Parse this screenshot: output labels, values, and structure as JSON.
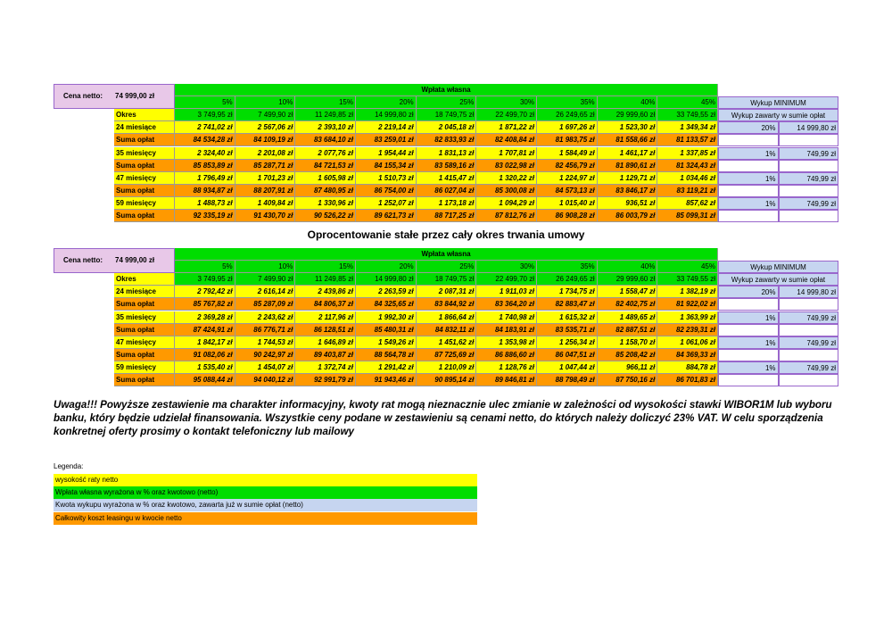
{
  "tables": [
    {
      "price_label": "Cena netto:",
      "price": "74 999,00 zł",
      "header": "Wpłata własna",
      "percents": [
        "5%",
        "10%",
        "15%",
        "20%",
        "25%",
        "30%",
        "35%",
        "40%",
        "45%"
      ],
      "buyout_header": "Wykup MINIMUM",
      "period_label": "Okres",
      "down_payments": [
        "3 749,95 zł",
        "7 499,90 zł",
        "11 249,85 zł",
        "14 999,80 zł",
        "18 749,75 zł",
        "22 499,70 zł",
        "26 249,65 zł",
        "29 999,60 zł",
        "33 749,55 zł"
      ],
      "buyout_note": "Wykup zawarty w sumie opłat",
      "rows": [
        {
          "label": "24 miesiące",
          "values": [
            "2 741,02 zł",
            "2 567,06 zł",
            "2 393,10 zł",
            "2 219,14 zł",
            "2 045,18 zł",
            "1 871,22 zł",
            "1 697,26 zł",
            "1 523,30 zł",
            "1 349,34 zł"
          ],
          "buyout_pct": "20%",
          "buyout_amount": "14 999,80 zł"
        },
        {
          "label": "Suma opłat",
          "values": [
            "84 534,28 zł",
            "84 109,19 zł",
            "83 684,10 zł",
            "83 259,01 zł",
            "82 833,93 zł",
            "82 408,84 zł",
            "81 983,75 zł",
            "81 558,66 zł",
            "81 133,57 zł"
          ]
        },
        {
          "label": "35 miesięcy",
          "values": [
            "2 324,40 zł",
            "2 201,08 zł",
            "2 077,76 zł",
            "1 954,44 zł",
            "1 831,13 zł",
            "1 707,81 zł",
            "1 584,49 zł",
            "1 461,17 zł",
            "1 337,85 zł"
          ],
          "buyout_pct": "1%",
          "buyout_amount": "749,99 zł"
        },
        {
          "label": "Suma opłat",
          "values": [
            "85 853,89 zł",
            "85 287,71 zł",
            "84 721,53 zł",
            "84 155,34 zł",
            "83 589,16 zł",
            "83 022,98 zł",
            "82 456,79 zł",
            "81 890,61 zł",
            "81 324,43 zł"
          ]
        },
        {
          "label": "47 miesięcy",
          "values": [
            "1 796,49 zł",
            "1 701,23 zł",
            "1 605,98 zł",
            "1 510,73 zł",
            "1 415,47 zł",
            "1 320,22 zł",
            "1 224,97 zł",
            "1 129,71 zł",
            "1 034,46 zł"
          ],
          "buyout_pct": "1%",
          "buyout_amount": "749,99 zł"
        },
        {
          "label": "Suma opłat",
          "values": [
            "88 934,87 zł",
            "88 207,91 zł",
            "87 480,95 zł",
            "86 754,00 zł",
            "86 027,04 zł",
            "85 300,08 zł",
            "84 573,13 zł",
            "83 846,17 zł",
            "83 119,21 zł"
          ]
        },
        {
          "label": "59 miesięcy",
          "values": [
            "1 488,73 zł",
            "1 409,84 zł",
            "1 330,96 zł",
            "1 252,07 zł",
            "1 173,18 zł",
            "1 094,29 zł",
            "1 015,40 zł",
            "936,51 zł",
            "857,62 zł"
          ],
          "buyout_pct": "1%",
          "buyout_amount": "749,99 zł"
        },
        {
          "label": "Suma opłat",
          "values": [
            "92 335,19 zł",
            "91 430,70 zł",
            "90 526,22 zł",
            "89 621,73 zł",
            "88 717,25 zł",
            "87 812,76 zł",
            "86 908,28 zł",
            "86 003,79 zł",
            "85 099,31 zł"
          ]
        }
      ]
    },
    {
      "price_label": "Cena netto:",
      "price": "74 999,00 zł",
      "header": "Wpłata własna",
      "percents": [
        "5%",
        "10%",
        "15%",
        "20%",
        "25%",
        "30%",
        "35%",
        "40%",
        "45%"
      ],
      "buyout_header": "Wykup MINIMUM",
      "period_label": "Okres",
      "down_payments": [
        "3 749,95 zł",
        "7 499,90 zł",
        "11 249,85 zł",
        "14 999,80 zł",
        "18 749,75 zł",
        "22 499,70 zł",
        "26 249,65 zł",
        "29 999,60 zł",
        "33 749,55 zł"
      ],
      "buyout_note": "Wykup zawarty w sumie opłat",
      "rows": [
        {
          "label": "24 miesiące",
          "values": [
            "2 792,42 zł",
            "2 616,14 zł",
            "2 439,86 zł",
            "2 263,59 zł",
            "2 087,31 zł",
            "1 911,03 zł",
            "1 734,75 zł",
            "1 558,47 zł",
            "1 382,19 zł"
          ],
          "buyout_pct": "20%",
          "buyout_amount": "14 999,80 zł"
        },
        {
          "label": "Suma opłat",
          "values": [
            "85 767,82 zł",
            "85 287,09 zł",
            "84 806,37 zł",
            "84 325,65 zł",
            "83 844,92 zł",
            "83 364,20 zł",
            "82 883,47 zł",
            "82 402,75 zł",
            "81 922,02 zł"
          ]
        },
        {
          "label": "35 miesięcy",
          "values": [
            "2 369,28 zł",
            "2 243,62 zł",
            "2 117,96 zł",
            "1 992,30 zł",
            "1 866,64 zł",
            "1 740,98 zł",
            "1 615,32 zł",
            "1 489,65 zł",
            "1 363,99 zł"
          ],
          "buyout_pct": "1%",
          "buyout_amount": "749,99 zł"
        },
        {
          "label": "Suma opłat",
          "values": [
            "87 424,91 zł",
            "86 776,71 zł",
            "86 128,51 zł",
            "85 480,31 zł",
            "84 832,11 zł",
            "84 183,91 zł",
            "83 535,71 zł",
            "82 887,51 zł",
            "82 239,31 zł"
          ]
        },
        {
          "label": "47 miesięcy",
          "values": [
            "1 842,17 zł",
            "1 744,53 zł",
            "1 646,89 zł",
            "1 549,26 zł",
            "1 451,62 zł",
            "1 353,98 zł",
            "1 256,34 zł",
            "1 158,70 zł",
            "1 061,06 zł"
          ],
          "buyout_pct": "1%",
          "buyout_amount": "749,99 zł"
        },
        {
          "label": "Suma opłat",
          "values": [
            "91 082,06 zł",
            "90 242,97 zł",
            "89 403,87 zł",
            "88 564,78 zł",
            "87 725,69 zł",
            "86 886,60 zł",
            "86 047,51 zł",
            "85 208,42 zł",
            "84 369,33 zł"
          ]
        },
        {
          "label": "59 miesięcy",
          "values": [
            "1 535,40 zł",
            "1 454,07 zł",
            "1 372,74 zł",
            "1 291,42 zł",
            "1 210,09 zł",
            "1 128,76 zł",
            "1 047,44 zł",
            "966,11 zł",
            "884,78 zł"
          ],
          "buyout_pct": "1%",
          "buyout_amount": "749,99 zł"
        },
        {
          "label": "Suma opłat",
          "values": [
            "95 088,44 zł",
            "94 040,12 zł",
            "92 991,79 zł",
            "91 943,46 zł",
            "90 895,14 zł",
            "89 846,81 zł",
            "88 798,49 zł",
            "87 750,16 zł",
            "86 701,83 zł"
          ]
        }
      ]
    }
  ],
  "heading": "Oprocentowanie stałe przez cały okres trwania umowy",
  "notice": "Uwaga!!! Powyższe zestawienie ma charakter informacyjny, kwoty rat mogą nieznacznie ulec zmianie w zależności od wysokości stawki WIBOR1M lub wyboru banku, który będzie udzielał finansowania. Wszystkie ceny podane w zestawieniu są cenami netto, do których należy doliczyć 23% VAT. W celu sporządzenia konkretnej oferty prosimy o kontakt telefoniczny lub mailowy",
  "legend": {
    "title": "Legenda:",
    "items": [
      "wysokość raty netto",
      "Wpłata własna wyrażona w % oraz kwotowo (netto)",
      "Kwota wykupu wyrażona w % oraz kwotowo, zawarta już w sumie opłat (netto)",
      "Całkowity koszt leasingu w kwocie netto"
    ]
  }
}
